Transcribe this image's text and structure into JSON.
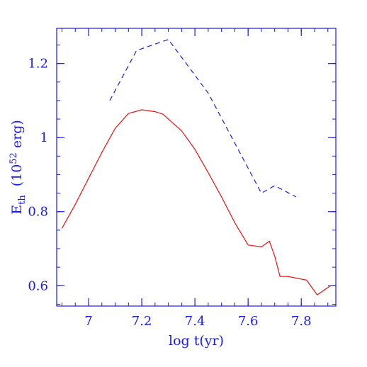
{
  "chart_data": {
    "type": "line",
    "xlabel": "log t(yr)",
    "ylabel_main": "E",
    "ylabel_sub": "th",
    "ylabel_unit_open": "(10",
    "ylabel_unit_sup": "52",
    "ylabel_unit_close": " erg)",
    "xlim": [
      6.88,
      7.93
    ],
    "ylim": [
      0.545,
      1.295
    ],
    "x_ticks": [
      7,
      7.2,
      7.4,
      7.6,
      7.8
    ],
    "x_tick_labels": [
      "7",
      "7.2",
      "7.4",
      "7.6",
      "7.8"
    ],
    "x_minor_step": 0.05,
    "y_ticks": [
      0.6,
      0.8,
      1.0,
      1.2
    ],
    "y_tick_labels": [
      "0.6",
      "0.8",
      "1",
      "1.2"
    ],
    "y_minor_step": 0.05,
    "grid": false,
    "colors": {
      "axis": "#1a1aee",
      "dashed_series": "#1a1aee",
      "solid_series": "#ee1111"
    },
    "series": [
      {
        "style": "solid",
        "color": "#ee1111",
        "x": [
          6.9,
          6.95,
          7.0,
          7.05,
          7.1,
          7.15,
          7.2,
          7.25,
          7.28,
          7.3,
          7.35,
          7.4,
          7.45,
          7.5,
          7.55,
          7.6,
          7.65,
          7.68,
          7.7,
          7.72,
          7.75,
          7.82,
          7.86,
          7.91
        ],
        "y": [
          0.755,
          0.82,
          0.89,
          0.96,
          1.025,
          1.065,
          1.075,
          1.07,
          1.063,
          1.05,
          1.018,
          0.968,
          0.905,
          0.84,
          0.77,
          0.71,
          0.705,
          0.72,
          0.68,
          0.625,
          0.625,
          0.615,
          0.575,
          0.6
        ]
      },
      {
        "style": "dashed",
        "color": "#1a1aee",
        "x": [
          7.08,
          7.18,
          7.3,
          7.45,
          7.55,
          7.65,
          7.7,
          7.78
        ],
        "y": [
          1.1,
          1.235,
          1.265,
          1.12,
          0.985,
          0.85,
          0.87,
          0.84
        ]
      }
    ]
  }
}
